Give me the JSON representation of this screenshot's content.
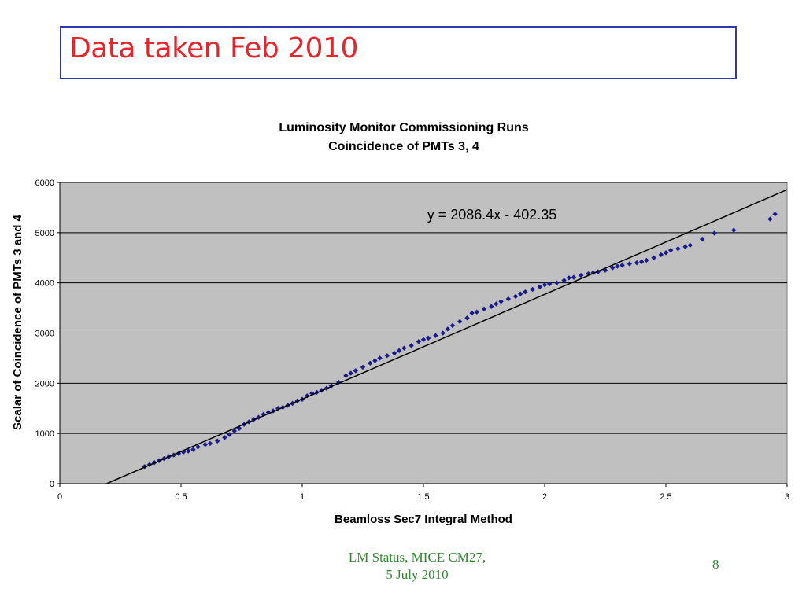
{
  "slide": {
    "title": "Data taken Feb 2010",
    "footer_line1": "LM Status, MICE CM27,",
    "footer_line2": "5 July 2010",
    "page_number": "8"
  },
  "chart_data": {
    "type": "scatter",
    "title": "Luminosity Monitor Commissioning Runs",
    "subtitle": "Coincidence of PMTs 3, 4",
    "xlabel": "Beamloss Sec7 Integral Method",
    "ylabel": "Scalar of Coincidence of PMTs 3 and 4",
    "xlim": [
      0,
      3
    ],
    "ylim": [
      0,
      6000
    ],
    "xticks": [
      "0",
      "0.5",
      "1",
      "1.5",
      "2",
      "2.5",
      "3"
    ],
    "yticks": [
      "0",
      "1000",
      "2000",
      "3000",
      "4000",
      "5000",
      "6000"
    ],
    "grid": "horizontal",
    "plot_background": "#c0c0c0",
    "marker_color": "#1a1a8c",
    "trendline": {
      "slope": 2086.4,
      "intercept": -402.35,
      "label": "y = 2086.4x - 402.35",
      "color": "#000000"
    },
    "series": [
      {
        "x": [
          0.35,
          0.37,
          0.39,
          0.41,
          0.43,
          0.45,
          0.47,
          0.49,
          0.51,
          0.53,
          0.55,
          0.57,
          0.6,
          0.62,
          0.65,
          0.68,
          0.7,
          0.72,
          0.74,
          0.76,
          0.78,
          0.8,
          0.82,
          0.84,
          0.86,
          0.88,
          0.9,
          0.92,
          0.94,
          0.96,
          0.98,
          1.0,
          1.02,
          1.04,
          1.06,
          1.08,
          1.1,
          1.12,
          1.15,
          1.18,
          1.2,
          1.22,
          1.25,
          1.28,
          1.3,
          1.32,
          1.35,
          1.38,
          1.4,
          1.42,
          1.45,
          1.48,
          1.5,
          1.52,
          1.55,
          1.58,
          1.6,
          1.62,
          1.65,
          1.68,
          1.7,
          1.72,
          1.75,
          1.78,
          1.8,
          1.82,
          1.85,
          1.88,
          1.9,
          1.92,
          1.95,
          1.98,
          2.0,
          2.02,
          2.05,
          2.08,
          2.1,
          2.12,
          2.15,
          2.18,
          2.2,
          2.22,
          2.25,
          2.28,
          2.3,
          2.32,
          2.35,
          2.38,
          2.4,
          2.42,
          2.45,
          2.48,
          2.5,
          2.52,
          2.55,
          2.58,
          2.6,
          2.65,
          2.7,
          2.78,
          2.93,
          2.95
        ],
        "y": [
          340,
          380,
          420,
          460,
          500,
          540,
          570,
          600,
          630,
          650,
          680,
          730,
          780,
          800,
          850,
          920,
          980,
          1050,
          1100,
          1180,
          1230,
          1280,
          1320,
          1380,
          1420,
          1450,
          1500,
          1520,
          1560,
          1600,
          1650,
          1680,
          1750,
          1800,
          1820,
          1860,
          1900,
          1950,
          2020,
          2150,
          2200,
          2250,
          2320,
          2400,
          2450,
          2500,
          2550,
          2600,
          2650,
          2700,
          2750,
          2830,
          2870,
          2900,
          2950,
          3000,
          3080,
          3150,
          3230,
          3300,
          3400,
          3420,
          3480,
          3530,
          3580,
          3630,
          3680,
          3730,
          3780,
          3820,
          3870,
          3920,
          3960,
          3980,
          4000,
          4050,
          4100,
          4110,
          4150,
          4180,
          4200,
          4220,
          4250,
          4300,
          4330,
          4350,
          4380,
          4400,
          4420,
          4450,
          4500,
          4560,
          4600,
          4650,
          4680,
          4720,
          4750,
          4870,
          4990,
          5050,
          5270,
          5370
        ]
      }
    ]
  }
}
